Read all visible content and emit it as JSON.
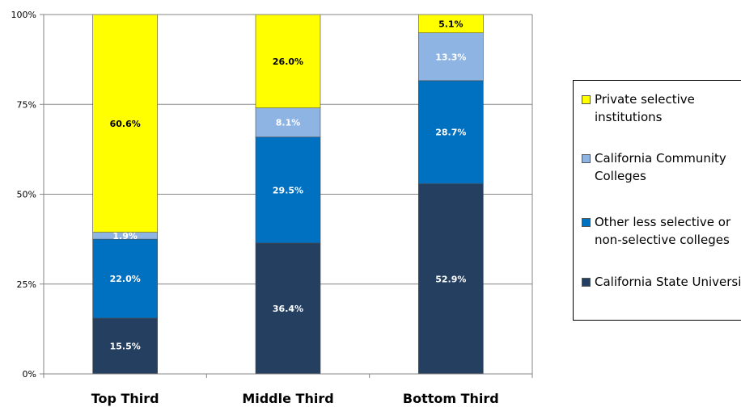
{
  "chart_data": {
    "type": "bar",
    "stacked": true,
    "categories": [
      "Top Third",
      "Middle Third",
      "Bottom Third"
    ],
    "series": [
      {
        "name": "California State University",
        "values": [
          15.5,
          36.4,
          52.9
        ],
        "labels": [
          "15.5%",
          "36.4%",
          "52.9%"
        ],
        "color": "#243F60"
      },
      {
        "name": "Other less selective or non-selective colleges",
        "values": [
          22.0,
          29.5,
          28.7
        ],
        "labels": [
          "22.0%",
          "29.5%",
          "28.7%"
        ],
        "color": "#0070C0"
      },
      {
        "name": "California Community Colleges",
        "values": [
          1.9,
          8.1,
          13.3
        ],
        "labels": [
          "1.9%",
          "8.1%",
          "13.3%"
        ],
        "color": "#8EB4E3"
      },
      {
        "name": "Private selective institutions",
        "values": [
          60.6,
          26.0,
          5.1
        ],
        "labels": [
          "60.6%",
          "26.0%",
          "5.1%"
        ],
        "color": "#FFFF00"
      }
    ],
    "yticks": [
      "0%",
      "25%",
      "50%",
      "75%",
      "100%"
    ],
    "ylim": [
      0,
      100
    ],
    "grid": true,
    "legend_position": "right",
    "legend_order": [
      "Private selective institutions",
      "California Community Colleges",
      "Other less selective or non-selective colleges",
      "California State University"
    ],
    "title": "",
    "xlabel": "",
    "ylabel": ""
  }
}
